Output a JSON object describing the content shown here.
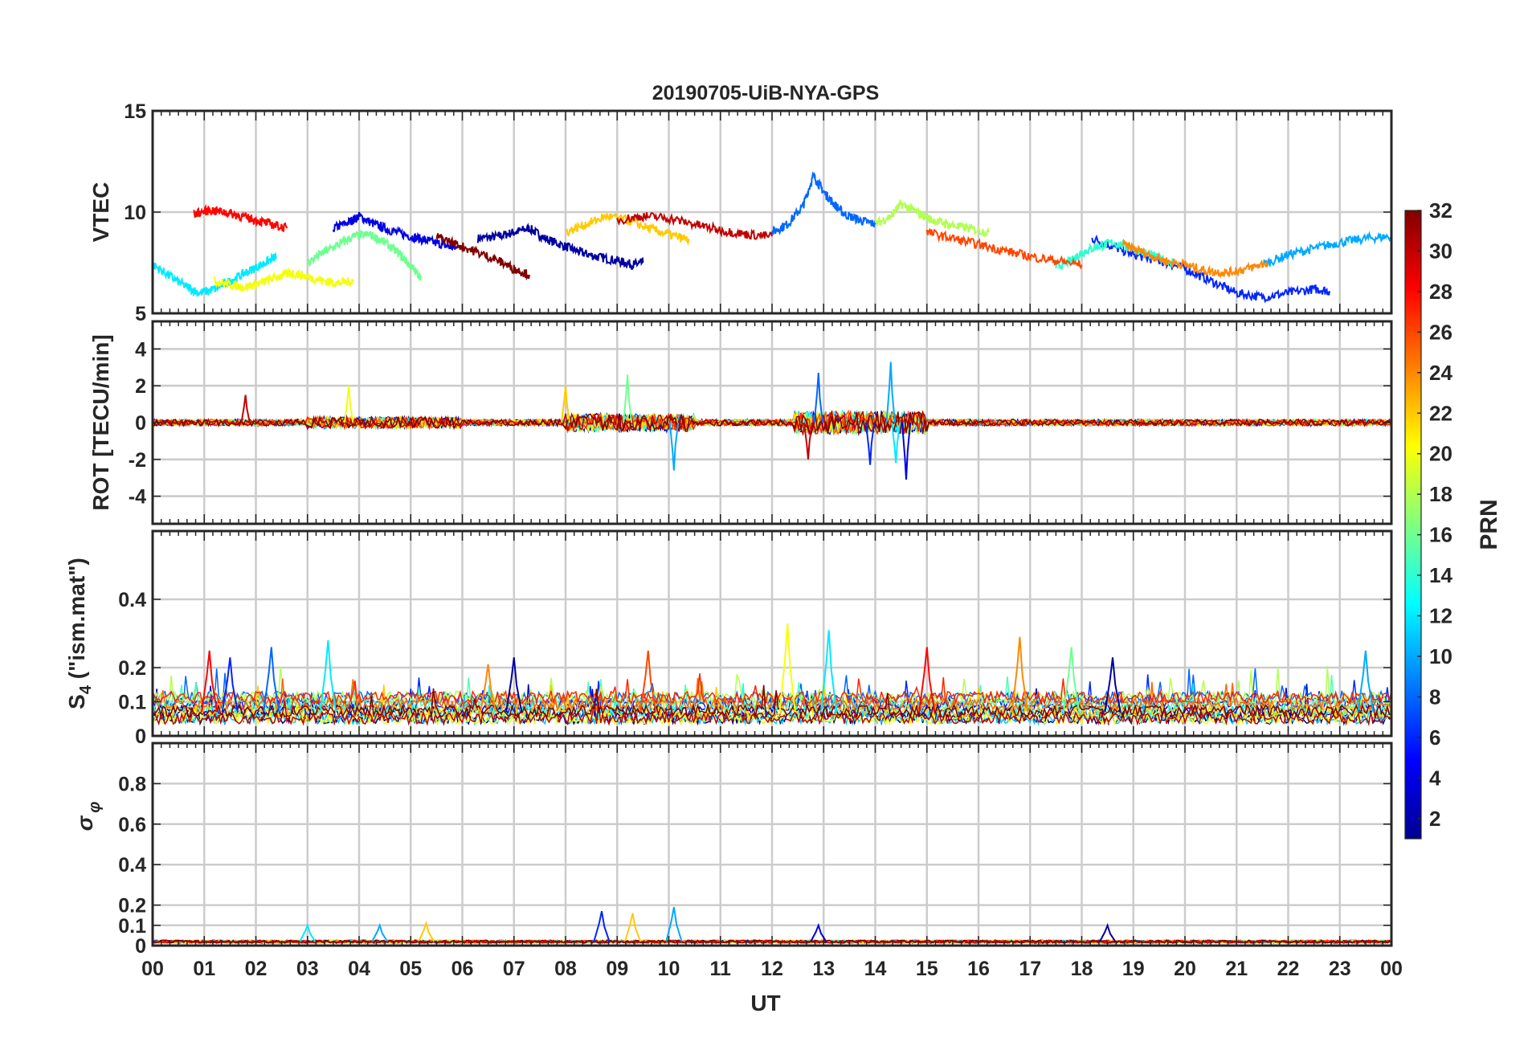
{
  "figure": {
    "title": "20190705-UiB-NYA-GPS",
    "xlabel": "UT",
    "colorbar_label": "PRN"
  },
  "chart_data": [
    {
      "type": "line",
      "panel": "VTEC",
      "ylabel": "VTEC",
      "ylim": [
        5,
        15
      ],
      "yticks": [
        "5",
        "10",
        "15"
      ],
      "xlim": [
        0,
        24
      ],
      "xticks": [
        "00",
        "01",
        "02",
        "03",
        "04",
        "05",
        "06",
        "07",
        "08",
        "09",
        "10",
        "11",
        "12",
        "13",
        "14",
        "15",
        "16",
        "17",
        "18",
        "19",
        "20",
        "21",
        "22",
        "23",
        "00"
      ],
      "grid": true,
      "series": [
        {
          "prn": 2,
          "x": [
            6.3,
            6.7,
            7.0,
            7.3,
            7.6,
            8.0,
            8.3,
            8.6,
            9.0,
            9.3,
            9.5
          ],
          "values": [
            8.7,
            8.8,
            9.0,
            9.2,
            8.7,
            8.3,
            8.0,
            7.8,
            7.6,
            7.4,
            7.5
          ]
        },
        {
          "prn": 4,
          "x": [
            3.5,
            3.8,
            4.0,
            4.3,
            4.6,
            5.0,
            5.3,
            5.6,
            5.9
          ],
          "values": [
            9.2,
            9.5,
            9.8,
            9.4,
            9.1,
            8.8,
            8.6,
            8.4,
            8.2
          ]
        },
        {
          "prn": 6,
          "x": [
            18.2,
            18.6,
            19.0,
            19.5,
            20.0,
            20.5,
            21.0,
            21.5,
            22.0,
            22.5,
            22.8
          ],
          "values": [
            8.7,
            8.3,
            7.9,
            7.6,
            7.2,
            6.6,
            6.0,
            5.8,
            6.0,
            6.2,
            6.1
          ]
        },
        {
          "prn": 8,
          "x": [
            12.0,
            12.3,
            12.6,
            12.8,
            13.0,
            13.2,
            13.4,
            13.7,
            14.0
          ],
          "values": [
            9.0,
            9.4,
            10.3,
            11.8,
            11.0,
            10.4,
            9.9,
            9.6,
            9.4
          ]
        },
        {
          "prn": 10,
          "x": [
            21.5,
            22.0,
            22.5,
            23.0,
            23.5,
            24.0
          ],
          "values": [
            7.4,
            7.9,
            8.2,
            8.5,
            8.7,
            8.8
          ]
        },
        {
          "prn": 12,
          "x": [
            0.0,
            0.3,
            0.6,
            0.9,
            1.2,
            1.5,
            1.8,
            2.1,
            2.4
          ],
          "values": [
            7.4,
            6.9,
            6.4,
            6.0,
            6.2,
            6.6,
            7.0,
            7.4,
            7.8
          ]
        },
        {
          "prn": 14,
          "x": [
            17.5,
            17.8,
            18.0,
            18.3,
            18.6,
            19.0,
            19.4,
            19.8
          ],
          "values": [
            7.3,
            7.6,
            8.0,
            8.3,
            8.5,
            8.2,
            7.8,
            7.5
          ]
        },
        {
          "prn": 16,
          "x": [
            3.0,
            3.3,
            3.6,
            3.9,
            4.2,
            4.5,
            4.8,
            5.0,
            5.2
          ],
          "values": [
            7.5,
            8.0,
            8.4,
            8.8,
            8.9,
            8.5,
            7.9,
            7.3,
            6.8
          ]
        },
        {
          "prn": 18,
          "x": [
            14.0,
            14.3,
            14.5,
            14.8,
            15.1,
            15.4,
            15.8,
            16.2
          ],
          "values": [
            9.4,
            9.8,
            10.4,
            10.0,
            9.6,
            9.4,
            9.2,
            9.0
          ]
        },
        {
          "prn": 20,
          "x": [
            1.2,
            1.5,
            1.8,
            2.1,
            2.4,
            2.7,
            3.0,
            3.3,
            3.6,
            3.9
          ],
          "values": [
            6.6,
            6.4,
            6.3,
            6.5,
            6.8,
            7.0,
            6.8,
            6.6,
            6.5,
            6.6
          ]
        },
        {
          "prn": 22,
          "x": [
            8.0,
            8.4,
            8.8,
            9.2,
            9.6,
            10.0,
            10.4
          ],
          "values": [
            9.0,
            9.4,
            9.8,
            9.6,
            9.2,
            8.9,
            8.6
          ]
        },
        {
          "prn": 24,
          "x": [
            18.8,
            19.2,
            19.6,
            20.0,
            20.4,
            20.8,
            21.2,
            21.6
          ],
          "values": [
            8.4,
            8.0,
            7.6,
            7.4,
            7.1,
            7.0,
            7.2,
            7.5
          ]
        },
        {
          "prn": 26,
          "x": [
            15.0,
            15.5,
            16.0,
            16.5,
            17.0,
            17.5,
            18.0
          ],
          "values": [
            9.0,
            8.7,
            8.4,
            8.1,
            7.8,
            7.6,
            7.4
          ]
        },
        {
          "prn": 28,
          "x": [
            0.8,
            1.1,
            1.4,
            1.7,
            2.0,
            2.3,
            2.6
          ],
          "values": [
            9.9,
            10.1,
            10.0,
            9.8,
            9.6,
            9.4,
            9.2
          ]
        },
        {
          "prn": 30,
          "x": [
            9.0,
            9.5,
            10.0,
            10.5,
            11.0,
            11.5,
            12.0
          ],
          "values": [
            9.6,
            9.8,
            9.7,
            9.4,
            9.1,
            8.9,
            8.8
          ]
        },
        {
          "prn": 32,
          "x": [
            5.5,
            5.9,
            6.3,
            6.7,
            7.0,
            7.3
          ],
          "values": [
            8.8,
            8.4,
            8.0,
            7.6,
            7.2,
            6.9
          ]
        }
      ]
    },
    {
      "type": "line",
      "panel": "ROT",
      "ylabel": "ROT [TECU/min]",
      "ylim": [
        -5.5,
        5.5
      ],
      "yticks": [
        "-4",
        "-2",
        "0",
        "2",
        "4"
      ],
      "xlim": [
        0,
        24
      ],
      "grid": true,
      "note": "noisy series centred on 0 with enhanced spikes near 08-10 UT and 12.5-15 UT",
      "spikes": [
        {
          "x": 1.8,
          "value": 1.5,
          "prn": 30
        },
        {
          "x": 3.8,
          "value": 2.0,
          "prn": 20
        },
        {
          "x": 8.0,
          "value": 2.0,
          "prn": 22
        },
        {
          "x": 9.2,
          "value": 2.6,
          "prn": 16
        },
        {
          "x": 10.1,
          "value": -2.6,
          "prn": 10
        },
        {
          "x": 12.9,
          "value": 2.7,
          "prn": 8
        },
        {
          "x": 12.7,
          "value": -2.0,
          "prn": 30
        },
        {
          "x": 13.9,
          "value": -2.3,
          "prn": 6
        },
        {
          "x": 14.3,
          "value": 3.3,
          "prn": 10
        },
        {
          "x": 14.6,
          "value": -3.1,
          "prn": 4
        },
        {
          "x": 14.4,
          "value": -2.2,
          "prn": 12
        }
      ]
    },
    {
      "type": "line",
      "panel": "S4",
      "ylabel": "S4 (\"ism.mat\")",
      "ylim": [
        0,
        0.6
      ],
      "yticks": [
        "0",
        "0.1",
        "0.2",
        "0.4"
      ],
      "xlim": [
        0,
        24
      ],
      "grid": true,
      "note": "background level 0.03-0.12 with peaks listed",
      "peaks": [
        {
          "x": 1.1,
          "value": 0.25,
          "prn": 28
        },
        {
          "x": 1.5,
          "value": 0.23,
          "prn": 6
        },
        {
          "x": 2.3,
          "value": 0.26,
          "prn": 8
        },
        {
          "x": 3.4,
          "value": 0.28,
          "prn": 12
        },
        {
          "x": 6.5,
          "value": 0.21,
          "prn": 24
        },
        {
          "x": 7.0,
          "value": 0.23,
          "prn": 2
        },
        {
          "x": 9.6,
          "value": 0.25,
          "prn": 26
        },
        {
          "x": 12.3,
          "value": 0.33,
          "prn": 20
        },
        {
          "x": 13.1,
          "value": 0.31,
          "prn": 12
        },
        {
          "x": 15.0,
          "value": 0.26,
          "prn": 28
        },
        {
          "x": 16.8,
          "value": 0.29,
          "prn": 24
        },
        {
          "x": 17.8,
          "value": 0.26,
          "prn": 16
        },
        {
          "x": 18.6,
          "value": 0.23,
          "prn": 2
        },
        {
          "x": 23.5,
          "value": 0.25,
          "prn": 10
        }
      ]
    },
    {
      "type": "line",
      "panel": "sigma_phi",
      "ylabel": "σ φ",
      "ylim": [
        0,
        1.0
      ],
      "yticks": [
        "0",
        "0.1",
        "0.2",
        "0.4",
        "0.6",
        "0.8"
      ],
      "xlim": [
        0,
        24
      ],
      "grid": true,
      "note": "background level near 0.02 with small peaks",
      "peaks": [
        {
          "x": 3.0,
          "value": 0.1,
          "prn": 12
        },
        {
          "x": 4.4,
          "value": 0.1,
          "prn": 10
        },
        {
          "x": 5.3,
          "value": 0.11,
          "prn": 22
        },
        {
          "x": 8.7,
          "value": 0.17,
          "prn": 6
        },
        {
          "x": 9.3,
          "value": 0.16,
          "prn": 22
        },
        {
          "x": 10.1,
          "value": 0.19,
          "prn": 10
        },
        {
          "x": 12.9,
          "value": 0.1,
          "prn": 4
        },
        {
          "x": 18.5,
          "value": 0.1,
          "prn": 2
        }
      ]
    }
  ],
  "colorbar": {
    "label": "PRN",
    "range": [
      1,
      32
    ],
    "ticks": [
      "2",
      "4",
      "6",
      "8",
      "10",
      "12",
      "14",
      "16",
      "18",
      "20",
      "22",
      "24",
      "26",
      "28",
      "30",
      "32"
    ]
  }
}
